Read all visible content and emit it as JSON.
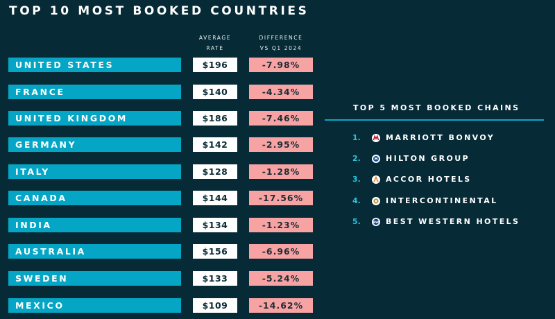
{
  "title": "TOP 10 MOST BOOKED COUNTRIES",
  "columns": {
    "rate": [
      "AVERAGE",
      "RATE"
    ],
    "diff": [
      "DIFFERENCE",
      "VS Q1 2024"
    ]
  },
  "countries": [
    {
      "name": "UNITED STATES",
      "rate": "$196",
      "diff": "-7.98%"
    },
    {
      "name": "FRANCE",
      "rate": "$140",
      "diff": "-4.34%"
    },
    {
      "name": "UNITED KINGDOM",
      "rate": "$186",
      "diff": "-7.46%"
    },
    {
      "name": "GERMANY",
      "rate": "$142",
      "diff": "-2.95%"
    },
    {
      "name": "ITALY",
      "rate": "$128",
      "diff": "-1.28%"
    },
    {
      "name": "CANADA",
      "rate": "$144",
      "diff": "-17.56%"
    },
    {
      "name": "INDIA",
      "rate": "$134",
      "diff": "-1.23%"
    },
    {
      "name": "AUSTRALIA",
      "rate": "$156",
      "diff": "-6.96%"
    },
    {
      "name": "SWEDEN",
      "rate": "$133",
      "diff": "-5.24%"
    },
    {
      "name": "MEXICO",
      "rate": "$109",
      "diff": "-14.62%"
    }
  ],
  "chains": {
    "title": "TOP 5 MOST BOOKED CHAINS",
    "items": [
      {
        "num": "1.",
        "name": "MARRIOTT BONVOY",
        "icon": "marriott-logo-icon",
        "color": "#c8102e"
      },
      {
        "num": "2.",
        "name": "HILTON GROUP",
        "icon": "hilton-logo-icon",
        "color": "#104c97"
      },
      {
        "num": "3.",
        "name": "ACCOR HOTELS",
        "icon": "accor-logo-icon",
        "color": "#e08a2e"
      },
      {
        "num": "4.",
        "name": "INTERCONTINENTAL",
        "icon": "intercontinental-logo-icon",
        "color": "#b8913a"
      },
      {
        "num": "5.",
        "name": "BEST WESTERN HOTELS",
        "icon": "best-western-logo-icon",
        "color": "#0b3f8c"
      }
    ]
  },
  "colors": {
    "background": "#062a36",
    "country_bar": "#05a5c5",
    "diff_bar": "#f7a3a3",
    "accent": "#29c3df"
  }
}
